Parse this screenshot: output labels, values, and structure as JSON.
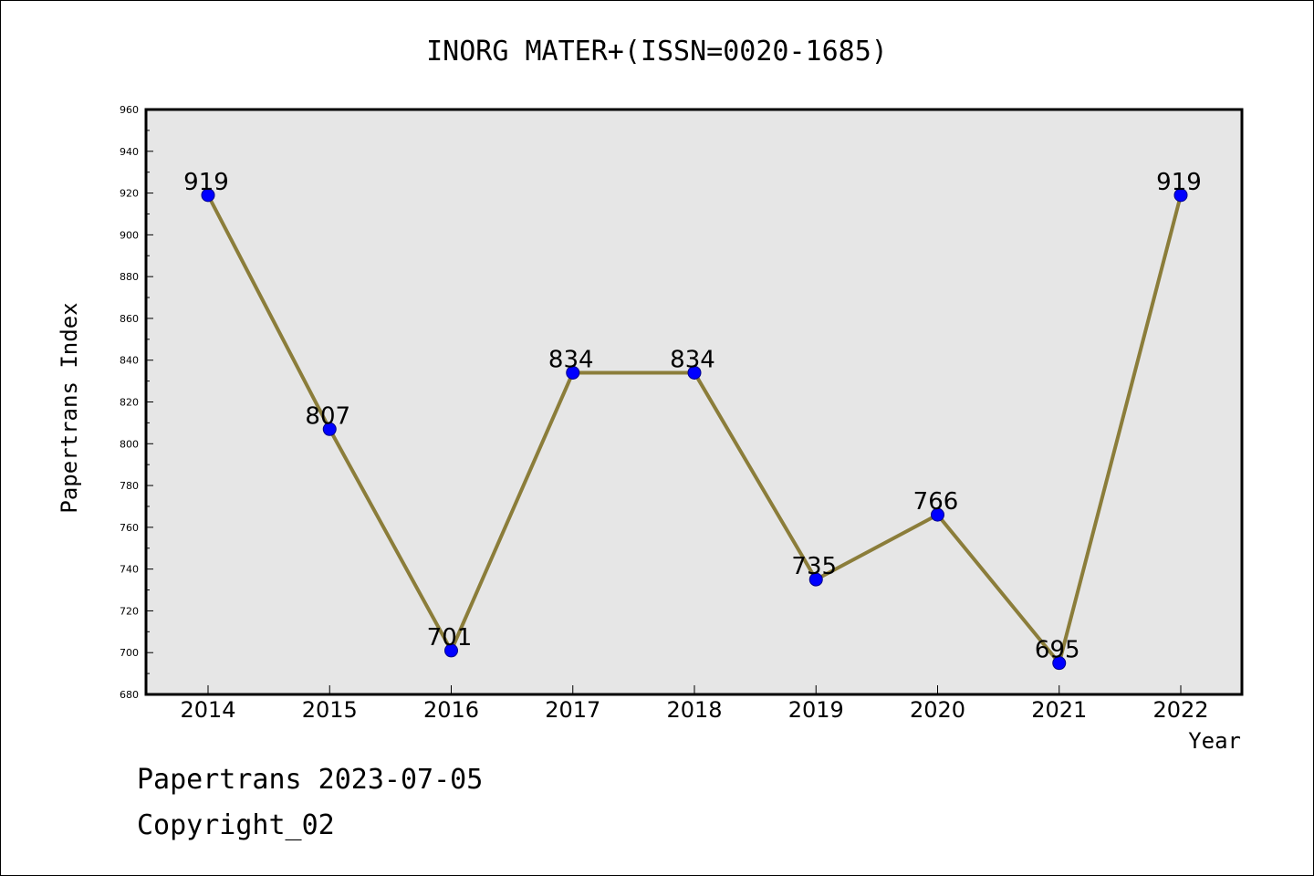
{
  "footer": {
    "line1": "Papertrans 2023-07-05",
    "line2": "Copyright_02"
  },
  "colors": {
    "plot_background": "#e6e6e6",
    "line": "#8b7d3a",
    "marker": "#0000ff",
    "marker_edge": "#00008b"
  },
  "chart_data": {
    "type": "line",
    "title": "INORG MATER+(ISSN=0020-1685)",
    "xlabel": "Year",
    "ylabel": "Papertrans Index",
    "categories": [
      "2014",
      "2015",
      "2016",
      "2017",
      "2018",
      "2019",
      "2020",
      "2021",
      "2022"
    ],
    "series": [
      {
        "values": [
          919,
          807,
          701,
          834,
          834,
          735,
          766,
          695,
          919
        ]
      }
    ],
    "data_labels": [
      "919",
      "807",
      "701",
      "834",
      "834",
      "735",
      "766",
      "695",
      "919"
    ],
    "ylim": [
      680,
      960
    ],
    "yticks": [
      "680",
      "700",
      "720",
      "740",
      "760",
      "780",
      "800",
      "820",
      "840",
      "860",
      "880",
      "900",
      "920",
      "940",
      "960"
    ],
    "grid": false,
    "legend": "none"
  }
}
